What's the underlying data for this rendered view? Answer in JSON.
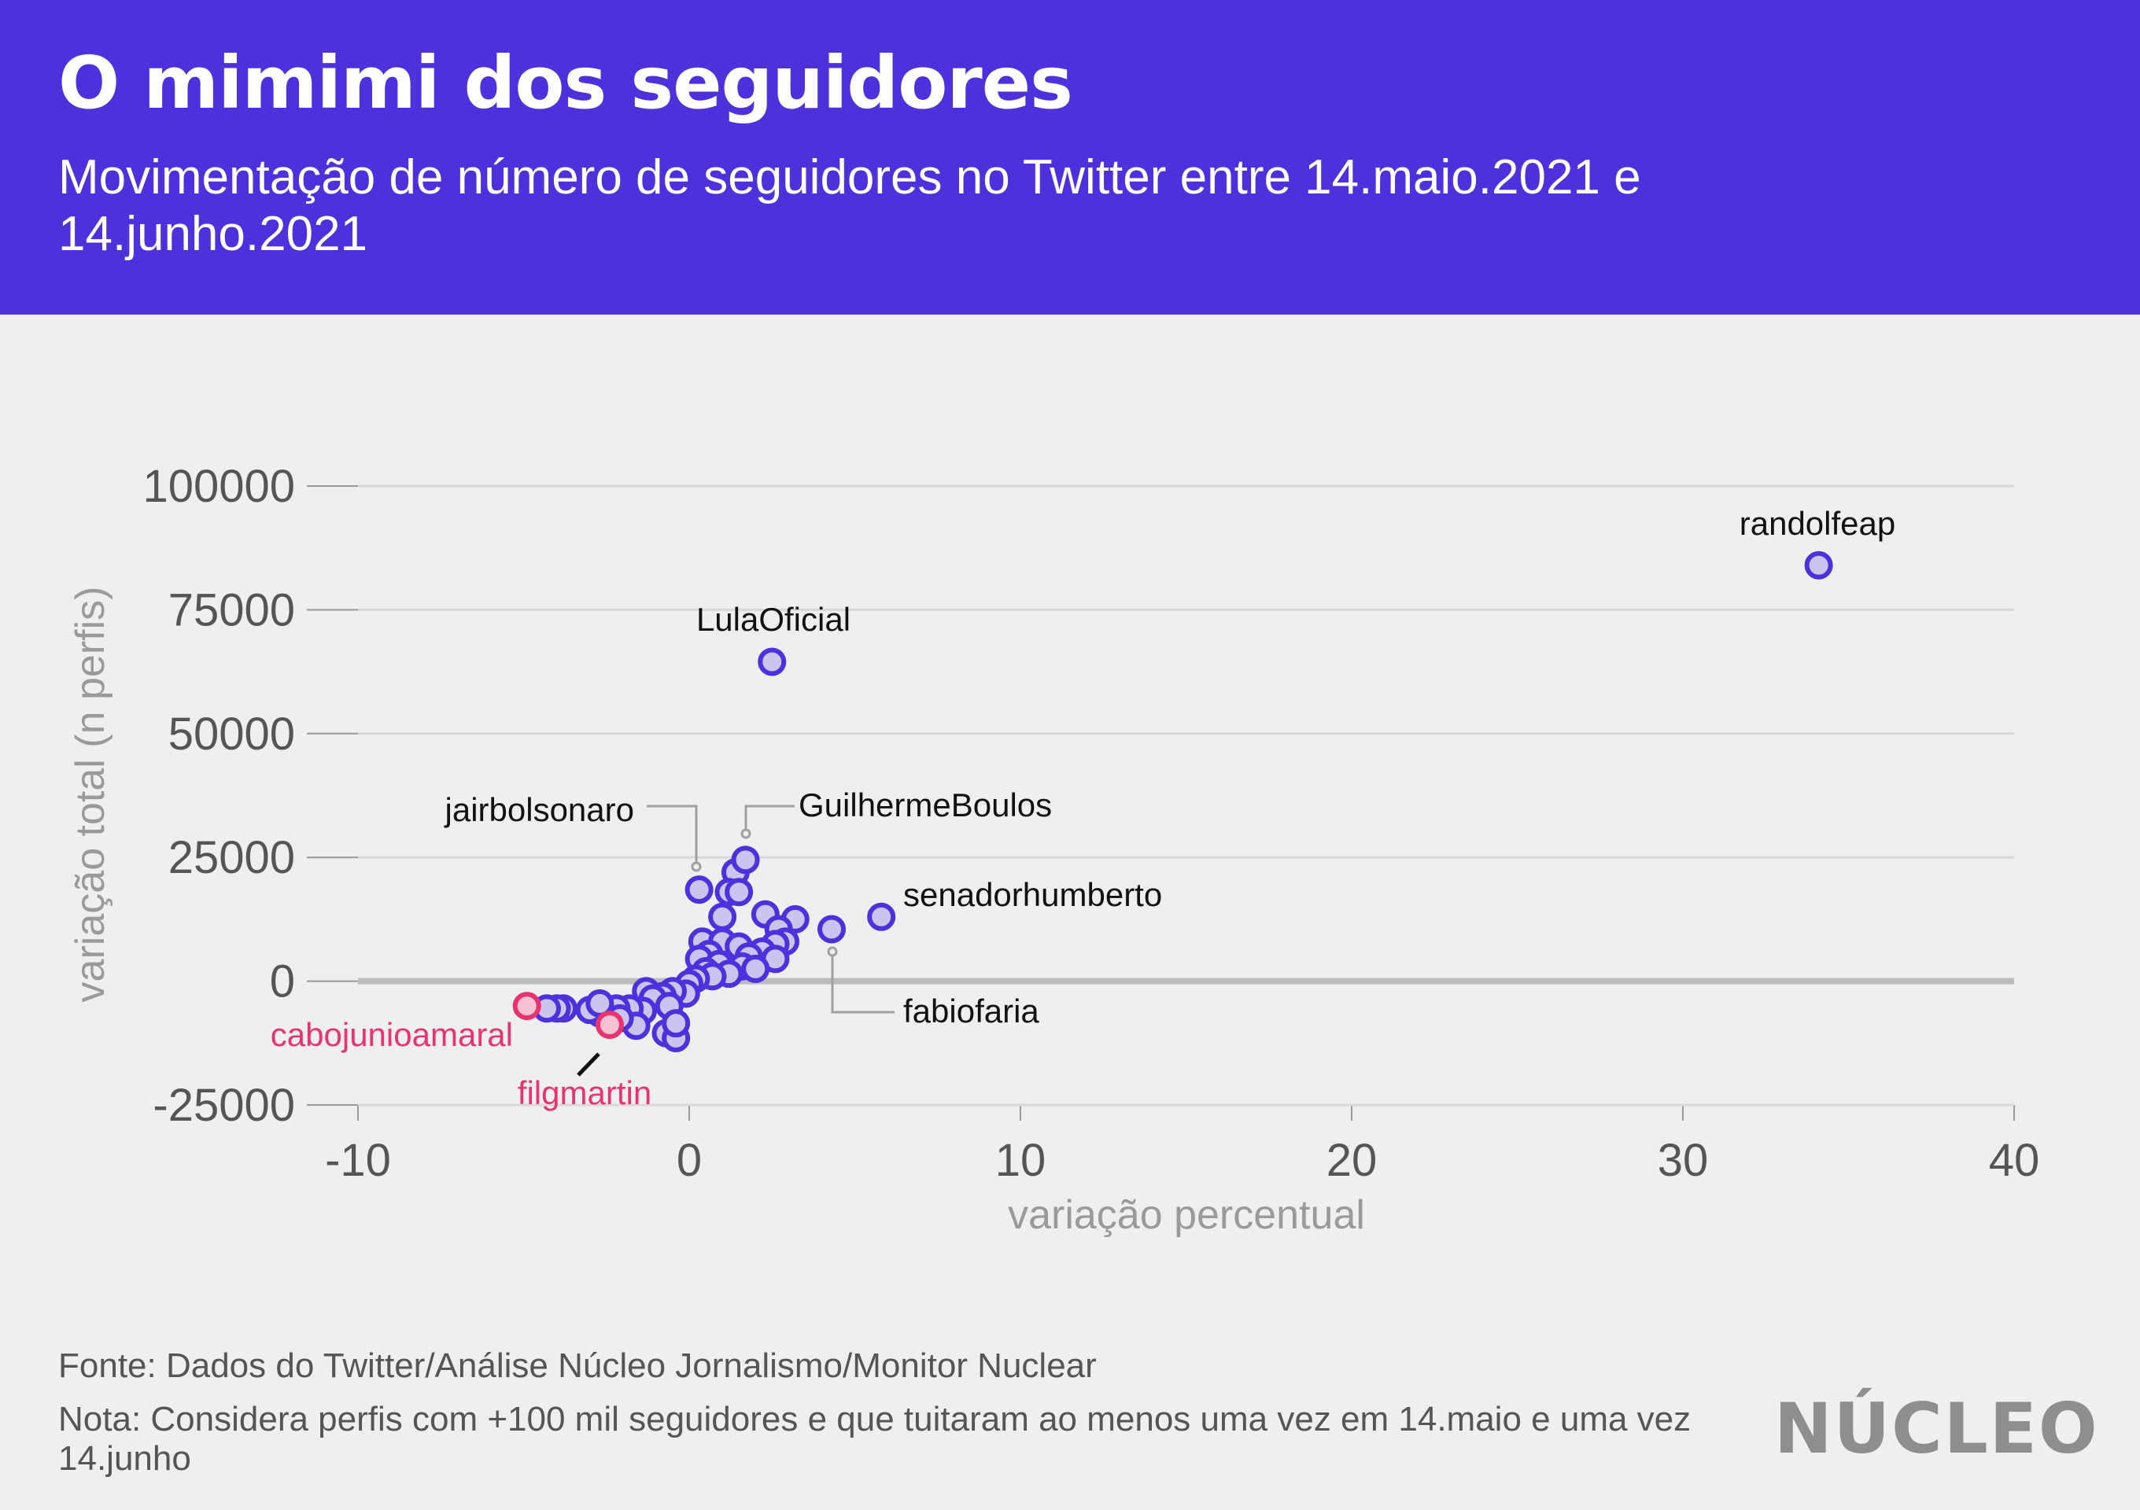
{
  "header": {
    "title": "O mimimi dos seguidores",
    "subtitle": "Movimentação de número de seguidores no Twitter entre 14.maio.2021 e 14.junho.2021"
  },
  "footer": {
    "source": "Fonte: Dados do Twitter/Análise Núcleo Jornalismo/Monitor Nuclear",
    "note": "Nota: Considera perfis com +100 mil seguidores e que tuitaram ao menos uma vez em 14.maio e uma vez 14.junho",
    "logo": "NÚCLEO"
  },
  "colors": {
    "header_bg": "#4b32dd",
    "positive_stroke": "#4b32dd",
    "positive_fill": "#c9c5ee",
    "negative_stroke": "#e8336f",
    "negative_fill": "#f5c2d4",
    "background": "#efefef"
  },
  "chart_data": {
    "type": "scatter",
    "xlabel": "variação percentual",
    "ylabel": "variação total (n perfis)",
    "xlim": [
      -10,
      40
    ],
    "ylim": [
      -25000,
      100000
    ],
    "xticks": [
      -10,
      0,
      10,
      20,
      30,
      40
    ],
    "yticks": [
      -25000,
      0,
      25000,
      50000,
      75000,
      100000
    ],
    "grid": true,
    "points": [
      {
        "x": 34.1,
        "y": 84000,
        "label": "randolfeap",
        "group": "positive"
      },
      {
        "x": 2.5,
        "y": 64500,
        "label": "LulaOficial",
        "group": "positive"
      },
      {
        "x": 1.7,
        "y": 24500,
        "label": "GuilhermeBoulos",
        "group": "positive"
      },
      {
        "x": 0.3,
        "y": 18500,
        "label": "jairbolsonaro",
        "group": "positive"
      },
      {
        "x": 5.8,
        "y": 13000,
        "label": "senadorhumberto",
        "group": "positive"
      },
      {
        "x": 4.3,
        "y": 10500,
        "label": "fabiofaria",
        "group": "positive"
      },
      {
        "x": -4.9,
        "y": -5000,
        "label": "cabojunioamaral",
        "group": "negative"
      },
      {
        "x": -2.4,
        "y": -8800,
        "label": "filgmartin",
        "group": "negative"
      },
      {
        "x": 1.4,
        "y": 22000,
        "group": "positive"
      },
      {
        "x": 1.2,
        "y": 18000,
        "group": "positive"
      },
      {
        "x": 1.5,
        "y": 18000,
        "group": "positive"
      },
      {
        "x": 1.0,
        "y": 13000,
        "group": "positive"
      },
      {
        "x": 2.3,
        "y": 13500,
        "group": "positive"
      },
      {
        "x": 3.2,
        "y": 12500,
        "group": "positive"
      },
      {
        "x": 2.7,
        "y": 10500,
        "group": "positive"
      },
      {
        "x": 0.4,
        "y": 8000,
        "group": "positive"
      },
      {
        "x": 1.0,
        "y": 8000,
        "group": "positive"
      },
      {
        "x": 2.9,
        "y": 8000,
        "group": "positive"
      },
      {
        "x": 1.5,
        "y": 7000,
        "group": "positive"
      },
      {
        "x": 2.6,
        "y": 7500,
        "group": "positive"
      },
      {
        "x": 2.2,
        "y": 6000,
        "group": "positive"
      },
      {
        "x": 0.6,
        "y": 5500,
        "group": "positive"
      },
      {
        "x": 1.8,
        "y": 5000,
        "group": "positive"
      },
      {
        "x": 0.3,
        "y": 4500,
        "group": "positive"
      },
      {
        "x": 2.6,
        "y": 4500,
        "group": "positive"
      },
      {
        "x": 0.9,
        "y": 3500,
        "group": "positive"
      },
      {
        "x": 1.6,
        "y": 3000,
        "group": "positive"
      },
      {
        "x": 2.0,
        "y": 2500,
        "group": "positive"
      },
      {
        "x": 0.5,
        "y": 2000,
        "group": "positive"
      },
      {
        "x": 1.2,
        "y": 1500,
        "group": "positive"
      },
      {
        "x": 0.7,
        "y": 1000,
        "group": "positive"
      },
      {
        "x": 0.2,
        "y": 500,
        "group": "positive"
      },
      {
        "x": 0.0,
        "y": -500,
        "group": "positive"
      },
      {
        "x": -0.1,
        "y": -2500,
        "group": "positive"
      },
      {
        "x": -0.5,
        "y": -2000,
        "group": "positive"
      },
      {
        "x": -0.8,
        "y": -3000,
        "group": "positive"
      },
      {
        "x": -1.3,
        "y": -2000,
        "group": "positive"
      },
      {
        "x": -1.1,
        "y": -3500,
        "group": "positive"
      },
      {
        "x": -0.6,
        "y": -5000,
        "group": "positive"
      },
      {
        "x": -1.4,
        "y": -6000,
        "group": "positive"
      },
      {
        "x": -1.8,
        "y": -5500,
        "group": "positive"
      },
      {
        "x": -2.2,
        "y": -5500,
        "group": "positive"
      },
      {
        "x": -2.7,
        "y": -6500,
        "group": "positive"
      },
      {
        "x": -3.0,
        "y": -5800,
        "group": "positive"
      },
      {
        "x": -2.7,
        "y": -4500,
        "group": "positive"
      },
      {
        "x": -1.6,
        "y": -9000,
        "group": "positive"
      },
      {
        "x": -0.7,
        "y": -10500,
        "group": "positive"
      },
      {
        "x": -0.4,
        "y": -11500,
        "group": "positive"
      },
      {
        "x": -0.4,
        "y": -8500,
        "group": "positive"
      },
      {
        "x": -3.8,
        "y": -5500,
        "group": "positive"
      },
      {
        "x": -4.0,
        "y": -5500,
        "group": "positive"
      },
      {
        "x": -4.3,
        "y": -5500,
        "group": "positive"
      },
      {
        "x": -2.1,
        "y": -7500,
        "group": "positive"
      }
    ]
  }
}
